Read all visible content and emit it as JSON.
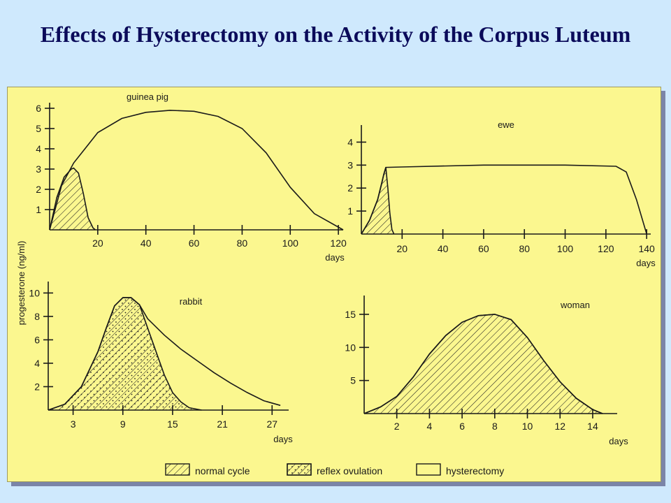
{
  "title": "Effects of Hysterectomy on the Activity of the Corpus Luteum",
  "shared_ylabel": "progesterone (ng/ml)",
  "legend": {
    "normal": "normal cycle",
    "reflex": "reflex ovulation",
    "hysterectomy": "hysterectomy"
  },
  "chart_data": [
    {
      "type": "area",
      "panel_label": "guinea pig",
      "xlabel": "days",
      "ylabel": "progesterone (ng/ml)",
      "xlim": [
        0,
        122
      ],
      "ylim": [
        0,
        6
      ],
      "xticks": [
        20,
        40,
        60,
        80,
        100,
        120
      ],
      "yticks": [
        1,
        2,
        3,
        4,
        5,
        6
      ],
      "normal_cycle": {
        "x": [
          0,
          3,
          6,
          9,
          10,
          12,
          14,
          16,
          18,
          19
        ],
        "y": [
          0,
          1.6,
          2.6,
          3.0,
          3.05,
          2.8,
          1.8,
          0.6,
          0.1,
          0
        ]
      },
      "hysterectomy": {
        "x": [
          0,
          5,
          10,
          20,
          30,
          40,
          50,
          60,
          70,
          80,
          90,
          100,
          110,
          122
        ],
        "y": [
          0,
          2.2,
          3.3,
          4.8,
          5.5,
          5.8,
          5.9,
          5.85,
          5.6,
          5.0,
          3.8,
          2.1,
          0.8,
          0
        ]
      }
    },
    {
      "type": "area",
      "panel_label": "ewe",
      "xlabel": "days",
      "ylabel": "",
      "xlim": [
        0,
        142
      ],
      "ylim": [
        0,
        4.5
      ],
      "xticks": [
        20,
        40,
        60,
        80,
        100,
        120,
        140
      ],
      "yticks": [
        1,
        2,
        3,
        4
      ],
      "normal_cycle": {
        "x": [
          0,
          4,
          8,
          10,
          11,
          12,
          13,
          14,
          15,
          16
        ],
        "y": [
          0,
          0.6,
          1.5,
          2.2,
          2.6,
          2.9,
          2.0,
          0.9,
          0.2,
          0
        ]
      },
      "hysterectomy": {
        "x": [
          0,
          4,
          8,
          11,
          12,
          20,
          60,
          100,
          125,
          130,
          135,
          140
        ],
        "y": [
          0,
          0.6,
          1.5,
          2.6,
          2.9,
          2.92,
          3.0,
          3.0,
          2.95,
          2.7,
          1.5,
          0
        ]
      }
    },
    {
      "type": "area",
      "panel_label": "rabbit",
      "xlabel": "days",
      "ylabel": "progesterone (ng/ml)",
      "xlim": [
        0,
        29
      ],
      "ylim": [
        0,
        10.5
      ],
      "xticks": [
        3,
        9,
        15,
        21,
        27
      ],
      "yticks": [
        2,
        4,
        6,
        8,
        10
      ],
      "reflex_ovulation": {
        "x": [
          0,
          2,
          4,
          6,
          7,
          8,
          9,
          10,
          11,
          12,
          13,
          14,
          15,
          16,
          17,
          18.5
        ],
        "y": [
          0,
          0.5,
          2,
          5,
          7,
          8.9,
          9.6,
          9.6,
          9.0,
          7.0,
          5.0,
          3.0,
          1.5,
          0.7,
          0.2,
          0
        ]
      },
      "hysterectomy": {
        "x": [
          0,
          2,
          4,
          6,
          7,
          8,
          9,
          10,
          11,
          12,
          14,
          16,
          18,
          20,
          22,
          24,
          26,
          28
        ],
        "y": [
          0,
          0.5,
          2,
          5,
          7,
          8.9,
          9.6,
          9.6,
          9.0,
          7.8,
          6.4,
          5.2,
          4.2,
          3.2,
          2.3,
          1.5,
          0.8,
          0.4
        ]
      }
    },
    {
      "type": "area",
      "panel_label": "woman",
      "xlabel": "days",
      "ylabel": "",
      "xlim": [
        0,
        15.5
      ],
      "ylim": [
        0,
        17
      ],
      "xticks": [
        2,
        4,
        6,
        8,
        10,
        12,
        14
      ],
      "yticks": [
        5,
        10,
        15
      ],
      "normal_cycle": {
        "x": [
          0,
          1,
          2,
          3,
          4,
          5,
          6,
          7,
          8,
          9,
          10,
          11,
          12,
          13,
          14,
          14.6
        ],
        "y": [
          0,
          1.0,
          2.6,
          5.5,
          9.0,
          11.8,
          13.8,
          14.8,
          15.0,
          14.2,
          11.5,
          8.0,
          4.8,
          2.3,
          0.6,
          0
        ]
      },
      "hysterectomy": {
        "x": [
          0,
          1,
          2,
          3,
          4,
          5,
          6,
          7,
          8,
          9,
          10,
          11,
          12,
          13,
          14,
          14.6
        ],
        "y": [
          0,
          1.0,
          2.6,
          5.5,
          9.0,
          11.8,
          13.8,
          14.8,
          15.0,
          14.2,
          11.5,
          8.0,
          4.8,
          2.3,
          0.6,
          0
        ]
      }
    }
  ]
}
